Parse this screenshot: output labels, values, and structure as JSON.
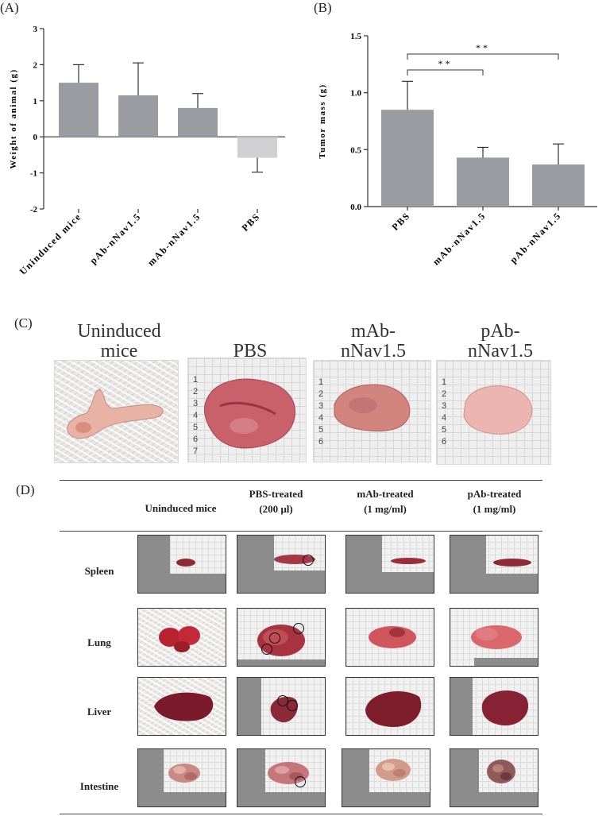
{
  "panels": {
    "a_label": "(A)",
    "b_label": "(B)",
    "c_label": "(C)",
    "d_label": "(D)"
  },
  "chart_data": [
    {
      "type": "bar",
      "ylabel": "Weight of animal (g)",
      "categories": [
        "Uninduced mice",
        "pAb-nNav1.5",
        "mAb-nNav1.5",
        "PBS"
      ],
      "values": [
        1.5,
        1.15,
        0.8,
        -0.58
      ],
      "errors": [
        0.5,
        0.9,
        0.4,
        0.4
      ],
      "bar_colors": [
        "#9b9ca1",
        "#9b9ca1",
        "#9b9ca1",
        "#d0d0d2"
      ],
      "ylim": [
        -2,
        3
      ],
      "yticks": [
        "3",
        "2",
        "1",
        "0",
        "-1",
        "-2"
      ],
      "grid": false
    },
    {
      "type": "bar",
      "ylabel": "Tumor mass (g)",
      "categories": [
        "PBS",
        "mAb-nNav1.5",
        "pAb-nNav1.5"
      ],
      "values": [
        0.85,
        0.43,
        0.37
      ],
      "errors": [
        0.25,
        0.09,
        0.18
      ],
      "bar_colors": [
        "#9b9ca1",
        "#9b9ca1",
        "#9b9ca1"
      ],
      "ylim": [
        0,
        1.5
      ],
      "yticks": [
        "1.5",
        "1.0",
        "0.5",
        "0.0"
      ],
      "significance": [
        {
          "from": "PBS",
          "to": "mAb-nNav1.5",
          "label": "**"
        },
        {
          "from": "PBS",
          "to": "pAb-nNav1.5",
          "label": "**"
        }
      ],
      "grid": false
    }
  ],
  "panel_c": {
    "captions": [
      "Uninduced mice",
      "PBS",
      "mAb- nNav1.5",
      "pAb- nNav1.5"
    ],
    "ruler_numbers": [
      "1",
      "2",
      "3",
      "4",
      "5",
      "6",
      "7"
    ]
  },
  "panel_d": {
    "columns": [
      "Uninduced mice",
      "PBS-treated",
      "(200 µl)",
      "mAb-treated",
      "(1 mg/ml)",
      "pAb-treated",
      "(1 mg/ml)"
    ],
    "rows": [
      "Spleen",
      "Lung",
      "Liver",
      "Intestine"
    ]
  },
  "colors": {
    "bar": "#9b9ca1",
    "bar_light": "#d0d0d2",
    "tissue": "#c0505a",
    "tissue_dark": "#8e2a33"
  }
}
